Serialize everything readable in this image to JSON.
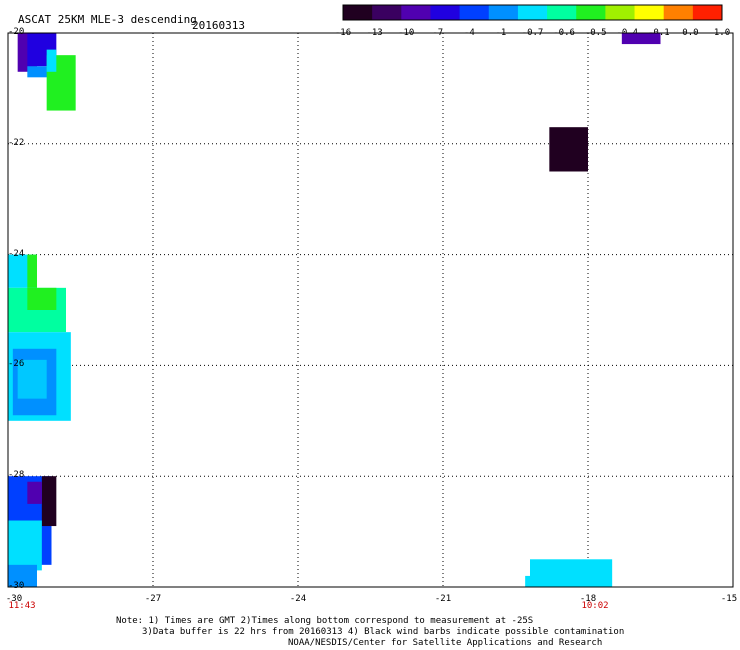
{
  "header": {
    "title": "ASCAT 25KM MLE-3 descending",
    "date": "20160313"
  },
  "colorbar": {
    "labels": [
      "-16",
      "-13",
      "-10",
      "-7",
      "-4",
      "-1",
      "-0.7",
      "-0.6",
      "-0.5",
      "-0.4",
      "-0.1",
      "0.0",
      "1.0"
    ],
    "colors": [
      "#200020",
      "#3a0060",
      "#5000b0",
      "#2000e0",
      "#0040ff",
      "#0090ff",
      "#00e0ff",
      "#00ffa0",
      "#20f020",
      "#a0f000",
      "#ffff00",
      "#ff8000",
      "#ff2000"
    ]
  },
  "map": {
    "y_axis_labels": [
      "-20",
      "-22",
      "-24",
      "-26",
      "-28",
      "-30"
    ],
    "x_axis_labels": [
      "-30",
      "-27",
      "-24",
      "-21",
      "-18",
      "-15"
    ],
    "time_labels": [
      "11:43",
      "10:02"
    ],
    "cells": [
      {
        "lon": -29.7,
        "lat": -20.4,
        "color": "#5000b0"
      },
      {
        "lon": -29.4,
        "lat": -20.5,
        "color": "#2000e0"
      },
      {
        "lon": -29.2,
        "lat": -20.8,
        "color": "#0040ff"
      },
      {
        "lon": -28.6,
        "lat": -21.0,
        "color": "#20f020"
      },
      {
        "lon": -29.0,
        "lat": -20.7,
        "color": "#00e0ff"
      },
      {
        "lon": -18.5,
        "lat": -22.1,
        "color": "#200020"
      },
      {
        "lon": -17.1,
        "lat": -20.1,
        "color": "#5000b0"
      },
      {
        "lon": -29.6,
        "lat": -24.4,
        "color": "#20f020"
      },
      {
        "lon": -29.5,
        "lat": -25.0,
        "color": "#00ffa0"
      },
      {
        "lon": -29.3,
        "lat": -25.8,
        "color": "#0090ff"
      },
      {
        "lon": -29.4,
        "lat": -26.2,
        "color": "#00e0ff"
      },
      {
        "lon": -29.6,
        "lat": -28.3,
        "color": "#2000e0"
      },
      {
        "lon": -29.2,
        "lat": -28.4,
        "color": "#200020"
      },
      {
        "lon": -29.5,
        "lat": -29.0,
        "color": "#00e0ff"
      },
      {
        "lon": -29.6,
        "lat": -29.6,
        "color": "#0090ff"
      },
      {
        "lon": -18.9,
        "lat": -29.8,
        "color": "#00e0ff"
      }
    ]
  },
  "notes": {
    "line1": "Note: 1) Times are GMT 2)Times along bottom correspond to measurement at -25S",
    "line2": "3)Data buffer is 22 hrs from 20160313 4) Black wind barbs indicate possible contamination",
    "line3": "NOAA/NESDIS/Center for Satellite Applications and Research"
  }
}
